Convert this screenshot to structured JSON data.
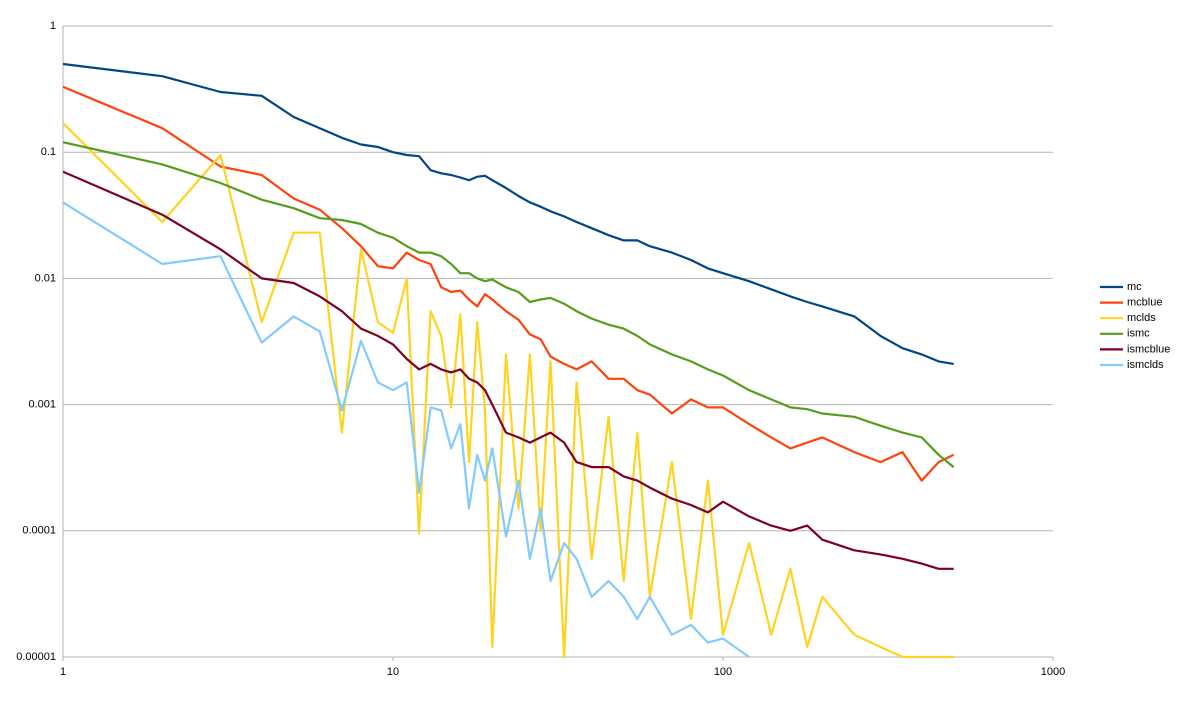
{
  "chart_data": {
    "type": "line",
    "log_x": true,
    "log_y": true,
    "grid": true,
    "legend": "right",
    "x": [
      1,
      2,
      3,
      4,
      5,
      6,
      7,
      8,
      9,
      10,
      11,
      12,
      13,
      14,
      15,
      16,
      17,
      18,
      19,
      20,
      22,
      24,
      26,
      28,
      30,
      33,
      36,
      40,
      45,
      50,
      55,
      60,
      70,
      80,
      90,
      100,
      120,
      140,
      160,
      180,
      200,
      250,
      300,
      350,
      400,
      450,
      500
    ],
    "xlim": [
      1,
      1000
    ],
    "xticks": [
      1,
      10,
      100,
      1000
    ],
    "ylim": [
      1e-05,
      1
    ],
    "yticks": [
      1e-05,
      0.0001,
      0.001,
      0.01,
      0.1,
      1
    ],
    "series": [
      {
        "name": "mc",
        "color": "#004586",
        "values": [
          0.5,
          0.4,
          0.3,
          0.28,
          0.19,
          0.155,
          0.13,
          0.115,
          0.11,
          0.1,
          0.095,
          0.093,
          0.072,
          0.068,
          0.066,
          0.063,
          0.06,
          0.064,
          0.065,
          0.06,
          0.052,
          0.045,
          0.04,
          0.037,
          0.034,
          0.031,
          0.028,
          0.025,
          0.022,
          0.02,
          0.02,
          0.018,
          0.016,
          0.014,
          0.012,
          0.011,
          0.0095,
          0.0082,
          0.0072,
          0.0065,
          0.006,
          0.005,
          0.0035,
          0.0028,
          0.0025,
          0.0022,
          0.0021
        ]
      },
      {
        "name": "mcblue",
        "color": "#ff420e",
        "values": [
          0.33,
          0.155,
          0.077,
          0.066,
          0.043,
          0.035,
          0.025,
          0.018,
          0.0125,
          0.012,
          0.016,
          0.014,
          0.013,
          0.0085,
          0.0078,
          0.008,
          0.0068,
          0.006,
          0.0075,
          0.0068,
          0.0055,
          0.0047,
          0.0036,
          0.0033,
          0.0024,
          0.0021,
          0.0019,
          0.0022,
          0.0016,
          0.0016,
          0.0013,
          0.0012,
          0.00085,
          0.0011,
          0.00095,
          0.00095,
          0.0007,
          0.00055,
          0.00045,
          0.0005,
          0.00055,
          0.00042,
          0.00035,
          0.00042,
          0.00025,
          0.00035,
          0.0004
        ]
      },
      {
        "name": "mclds",
        "color": "#ffd320",
        "values": [
          0.17,
          0.028,
          0.095,
          0.0045,
          0.023,
          0.023,
          0.0006,
          0.017,
          0.0045,
          0.0037,
          0.01,
          9.5e-05,
          0.0055,
          0.0035,
          0.00095,
          0.0052,
          0.00035,
          0.0045,
          0.0009,
          1.2e-05,
          0.0025,
          0.00015,
          0.0025,
          0.0001,
          0.0022,
          1e-05,
          0.0015,
          6e-05,
          0.0008,
          4e-05,
          0.0006,
          3e-05,
          0.00035,
          2e-05,
          0.00025,
          1.5e-05,
          8e-05,
          1.5e-05,
          5e-05,
          1.2e-05,
          3e-05,
          1.5e-05,
          1.2e-05,
          1e-05,
          1e-05,
          1e-05,
          1e-05
        ]
      },
      {
        "name": "ismc",
        "color": "#579d1c",
        "values": [
          0.12,
          0.08,
          0.057,
          0.042,
          0.036,
          0.03,
          0.029,
          0.027,
          0.023,
          0.021,
          0.018,
          0.016,
          0.016,
          0.015,
          0.013,
          0.011,
          0.011,
          0.01,
          0.0095,
          0.0098,
          0.0085,
          0.0078,
          0.0065,
          0.0068,
          0.007,
          0.0063,
          0.0055,
          0.0048,
          0.0043,
          0.004,
          0.0035,
          0.003,
          0.0025,
          0.0022,
          0.0019,
          0.0017,
          0.0013,
          0.0011,
          0.00095,
          0.00092,
          0.00085,
          0.0008,
          0.00068,
          0.0006,
          0.00055,
          0.0004,
          0.00032
        ]
      },
      {
        "name": "ismcblue",
        "color": "#7e0021",
        "values": [
          0.07,
          0.032,
          0.017,
          0.01,
          0.0092,
          0.0072,
          0.0055,
          0.004,
          0.0035,
          0.003,
          0.0023,
          0.0019,
          0.0021,
          0.0019,
          0.0018,
          0.0019,
          0.0016,
          0.0015,
          0.0013,
          0.001,
          0.0006,
          0.00055,
          0.0005,
          0.00055,
          0.0006,
          0.0005,
          0.00035,
          0.00032,
          0.00032,
          0.00027,
          0.00025,
          0.00022,
          0.00018,
          0.00016,
          0.00014,
          0.00017,
          0.00013,
          0.00011,
          0.0001,
          0.00011,
          8.5e-05,
          7e-05,
          6.5e-05,
          6e-05,
          5.5e-05,
          5e-05,
          5e-05
        ]
      },
      {
        "name": "ismclds",
        "color": "#83caff",
        "values": [
          0.04,
          0.013,
          0.015,
          0.0031,
          0.005,
          0.0038,
          0.0009,
          0.0032,
          0.0015,
          0.0013,
          0.0015,
          0.0002,
          0.00095,
          0.0009,
          0.00045,
          0.0007,
          0.00015,
          0.0004,
          0.00025,
          0.00045,
          9e-05,
          0.00025,
          6e-05,
          0.00015,
          4e-05,
          8e-05,
          6e-05,
          3e-05,
          4e-05,
          3e-05,
          2e-05,
          3e-05,
          1.5e-05,
          1.8e-05,
          1.3e-05,
          1.4e-05,
          1e-05,
          null,
          null,
          null,
          null,
          null,
          null,
          null,
          null,
          null,
          null
        ]
      }
    ]
  }
}
